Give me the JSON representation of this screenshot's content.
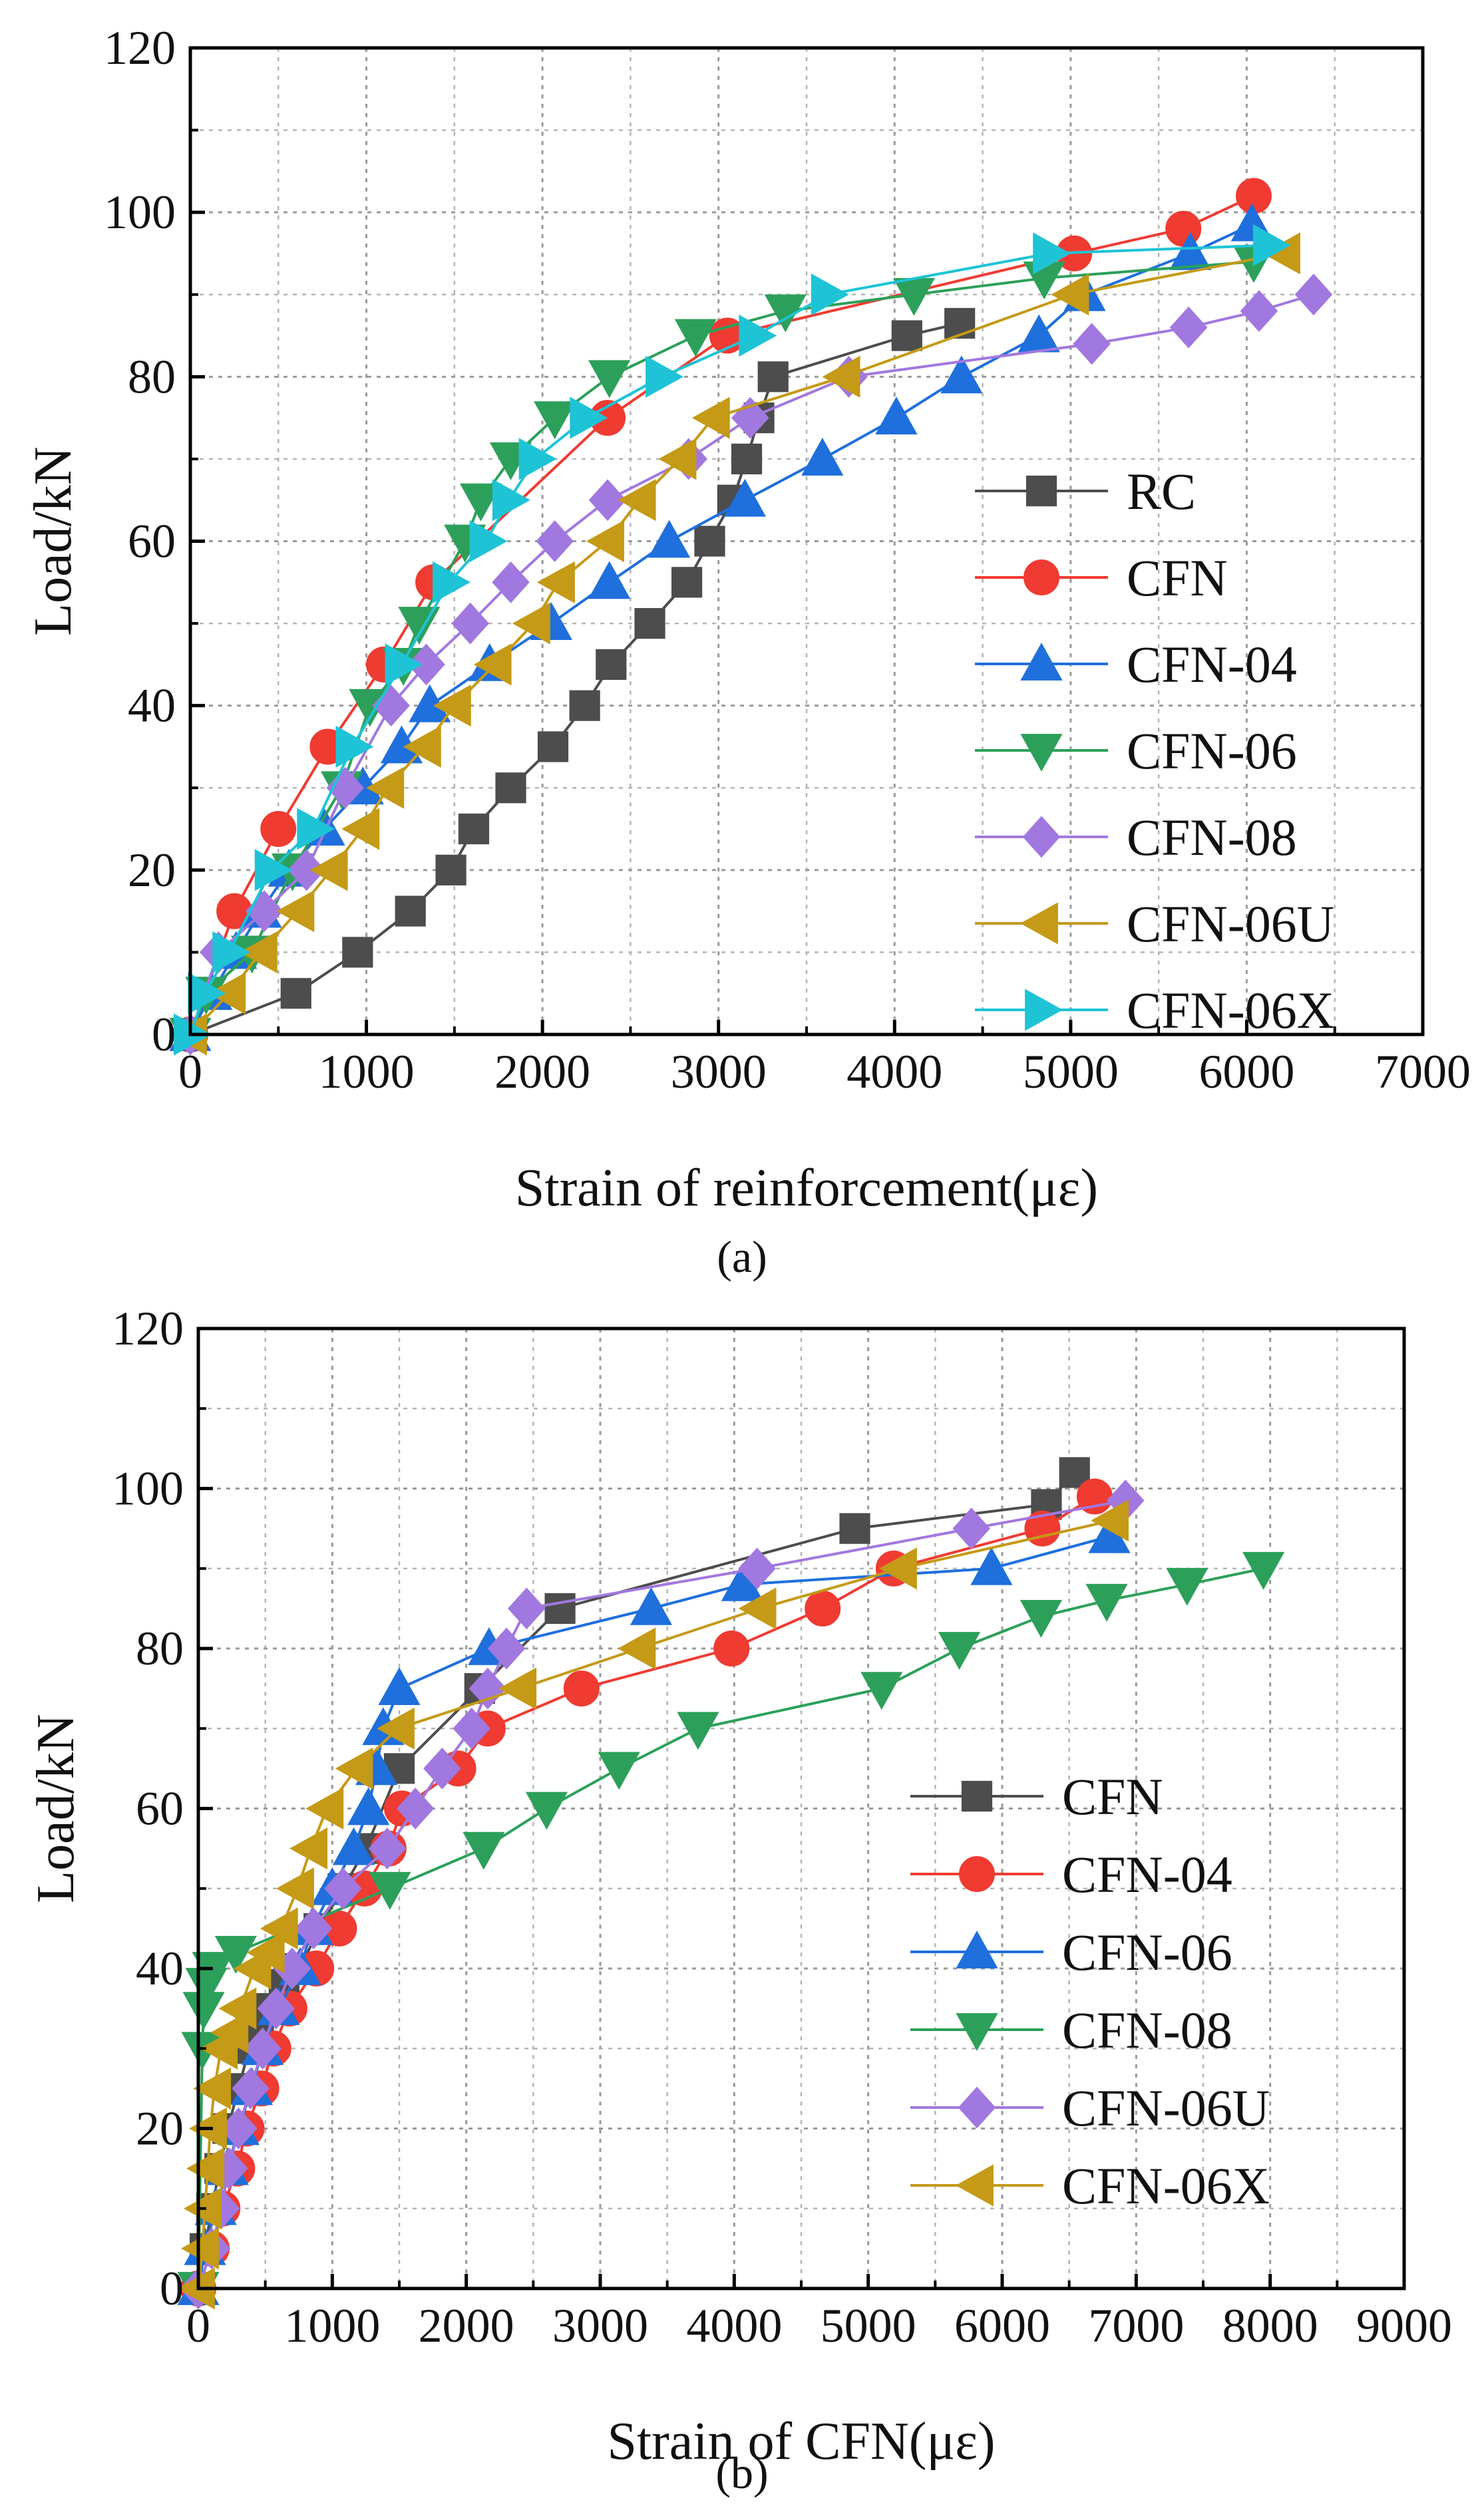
{
  "chart_data": [
    {
      "type": "line",
      "panel_label": "(a)",
      "xlabel": "Strain of reinforcement(με)",
      "ylabel": "Load/kN",
      "xlim": [
        0,
        7000
      ],
      "ylim": [
        0,
        120
      ],
      "xticks": [
        0,
        1000,
        2000,
        3000,
        4000,
        5000,
        6000,
        7000
      ],
      "yticks": [
        0,
        20,
        40,
        60,
        80,
        100,
        120
      ],
      "grid": true,
      "legend_position": "lower-right",
      "series": [
        {
          "name": "RC",
          "marker": "square",
          "color": "#4d4d4d",
          "x": [
            0,
            600,
            950,
            1250,
            1480,
            1610,
            1820,
            2060,
            2240,
            2390,
            2610,
            2820,
            2950,
            3080,
            3160,
            3230,
            3310,
            4070,
            4370
          ],
          "y": [
            0,
            5,
            10,
            15,
            20,
            25,
            30,
            35,
            40,
            45,
            50,
            55,
            60,
            65,
            70,
            75,
            80,
            85,
            86.5
          ]
        },
        {
          "name": "CFN",
          "marker": "circle",
          "color": "#ef3b32",
          "x": [
            0,
            250,
            500,
            780,
            1100,
            1380,
            2370,
            3050,
            5020,
            5640,
            6040
          ],
          "y": [
            0,
            15,
            25,
            35,
            45,
            55,
            75,
            85,
            95,
            98,
            102
          ]
        },
        {
          "name": "CFN-04",
          "marker": "triangle-up",
          "color": "#1f6fdc",
          "x": [
            0,
            120,
            260,
            400,
            560,
            760,
            980,
            1200,
            1360,
            1700,
            2050,
            2380,
            2720,
            3150,
            3590,
            4010,
            4380,
            4820,
            5080,
            5680,
            6030
          ],
          "y": [
            0,
            5,
            10,
            15,
            20,
            25,
            30,
            35,
            40,
            45,
            50,
            55,
            60,
            65,
            70,
            75,
            80,
            85,
            90,
            95,
            98.5
          ]
        },
        {
          "name": "CFN-06",
          "marker": "triangle-down",
          "color": "#2ca05a",
          "x": [
            0,
            90,
            350,
            580,
            860,
            1020,
            1210,
            1300,
            1560,
            1650,
            1820,
            2070,
            2380,
            2870,
            3380,
            4110,
            4850,
            6040
          ],
          "y": [
            0,
            5,
            10,
            20,
            30,
            40,
            45,
            50,
            60,
            65,
            70,
            75,
            80,
            85,
            88,
            90,
            92,
            94
          ]
        },
        {
          "name": "CFN-08",
          "marker": "diamond",
          "color": "#a178df",
          "x": [
            0,
            160,
            420,
            660,
            880,
            1140,
            1340,
            1590,
            1820,
            2070,
            2370,
            2830,
            3180,
            3740,
            5120,
            5670,
            6070,
            6380
          ],
          "y": [
            0,
            10,
            15,
            20,
            30,
            40,
            45,
            50,
            55,
            60,
            65,
            70,
            75,
            80,
            84,
            86,
            88,
            90
          ]
        },
        {
          "name": "CFN-06U",
          "marker": "triangle-left",
          "color": "#c49a16",
          "x": [
            0,
            220,
            400,
            610,
            800,
            980,
            1120,
            1330,
            1500,
            1730,
            1950,
            2090,
            2370,
            2550,
            2780,
            2970,
            3710,
            5010,
            6210
          ],
          "y": [
            0,
            5,
            10,
            15,
            20,
            25,
            30,
            35,
            40,
            45,
            50,
            55,
            60,
            65,
            70,
            75,
            80,
            90,
            95
          ]
        },
        {
          "name": "CFN-06X",
          "marker": "triangle-right",
          "color": "#1ec3d6",
          "x": [
            0,
            80,
            220,
            460,
            700,
            920,
            1200,
            1470,
            1680,
            1810,
            1960,
            2250,
            2680,
            3210,
            3620,
            4880,
            6130
          ],
          "y": [
            0,
            5,
            10,
            20,
            25,
            35,
            45,
            55,
            60,
            65,
            70,
            75,
            80,
            85,
            90,
            95,
            96
          ]
        }
      ]
    },
    {
      "type": "line",
      "panel_label": "(b)",
      "xlabel": "Strain of CFN(με)",
      "ylabel": "Load/kN",
      "xlim": [
        0,
        9000
      ],
      "ylim": [
        0,
        120
      ],
      "xticks": [
        0,
        1000,
        2000,
        3000,
        4000,
        5000,
        6000,
        7000,
        8000,
        9000
      ],
      "yticks": [
        0,
        20,
        40,
        60,
        80,
        100,
        120
      ],
      "grid": true,
      "legend_position": "center-right",
      "series": [
        {
          "name": "CFN",
          "marker": "square",
          "color": "#4d4d4d",
          "x": [
            0,
            50,
            100,
            160,
            220,
            300,
            380,
            450,
            520,
            640,
            760,
            900,
            1080,
            1250,
            1500,
            2100,
            2700,
            4900,
            6330,
            6540
          ],
          "y": [
            0,
            5,
            10,
            15,
            20,
            25,
            30,
            32,
            35,
            38,
            40,
            45,
            50,
            55,
            65,
            75,
            85,
            95,
            98,
            102
          ]
        },
        {
          "name": "CFN-04",
          "marker": "circle",
          "color": "#ef3b32",
          "x": [
            0,
            100,
            180,
            290,
            360,
            470,
            560,
            680,
            880,
            1050,
            1240,
            1420,
            1520,
            1940,
            2160,
            2860,
            3980,
            4660,
            5190,
            6300,
            6690
          ],
          "y": [
            0,
            5,
            10,
            15,
            20,
            25,
            30,
            35,
            40,
            45,
            50,
            55,
            60,
            65,
            70,
            75,
            80,
            85,
            90,
            95,
            99
          ]
        },
        {
          "name": "CFN-06",
          "marker": "triangle-up",
          "color": "#1f6fdc",
          "x": [
            0,
            50,
            130,
            220,
            300,
            400,
            480,
            600,
            760,
            850,
            1000,
            1160,
            1270,
            1330,
            1380,
            1500,
            2170,
            3380,
            4060,
            5920,
            6800
          ],
          "y": [
            0,
            5,
            10,
            15,
            20,
            25,
            30,
            35,
            40,
            45,
            50,
            55,
            60,
            65,
            70,
            75,
            80,
            85,
            88,
            90,
            94
          ]
        },
        {
          "name": "CFN-08",
          "marker": "triangle-down",
          "color": "#2ca05a",
          "x": [
            0,
            30,
            40,
            60,
            110,
            280,
            1430,
            2130,
            2600,
            3140,
            3730,
            5100,
            5680,
            6290,
            6780,
            7380,
            7950
          ],
          "y": [
            0,
            30,
            35,
            38,
            40,
            42,
            50,
            55,
            60,
            65,
            70,
            75,
            80,
            84,
            86,
            88,
            90
          ]
        },
        {
          "name": "CFN-06U",
          "marker": "diamond",
          "color": "#a178df",
          "x": [
            0,
            100,
            170,
            230,
            300,
            390,
            480,
            580,
            700,
            860,
            1080,
            1410,
            1620,
            1820,
            2040,
            2160,
            2300,
            2450,
            4170,
            5770,
            6920
          ],
          "y": [
            0,
            5,
            10,
            15,
            20,
            25,
            30,
            35,
            40,
            45,
            50,
            55,
            60,
            65,
            70,
            75,
            80,
            85,
            90,
            95,
            98.5
          ]
        },
        {
          "name": "CFN-06X",
          "marker": "triangle-left",
          "color": "#c49a16",
          "x": [
            0,
            30,
            50,
            70,
            90,
            120,
            170,
            250,
            310,
            420,
            520,
            620,
            740,
            840,
            960,
            1180,
            1490,
            2400,
            3290,
            4190,
            5240,
            6820
          ],
          "y": [
            0,
            5,
            10,
            15,
            20,
            25,
            30,
            32,
            35,
            40,
            42,
            45,
            50,
            55,
            60,
            65,
            70,
            75,
            80,
            85,
            90,
            96
          ]
        }
      ]
    }
  ]
}
